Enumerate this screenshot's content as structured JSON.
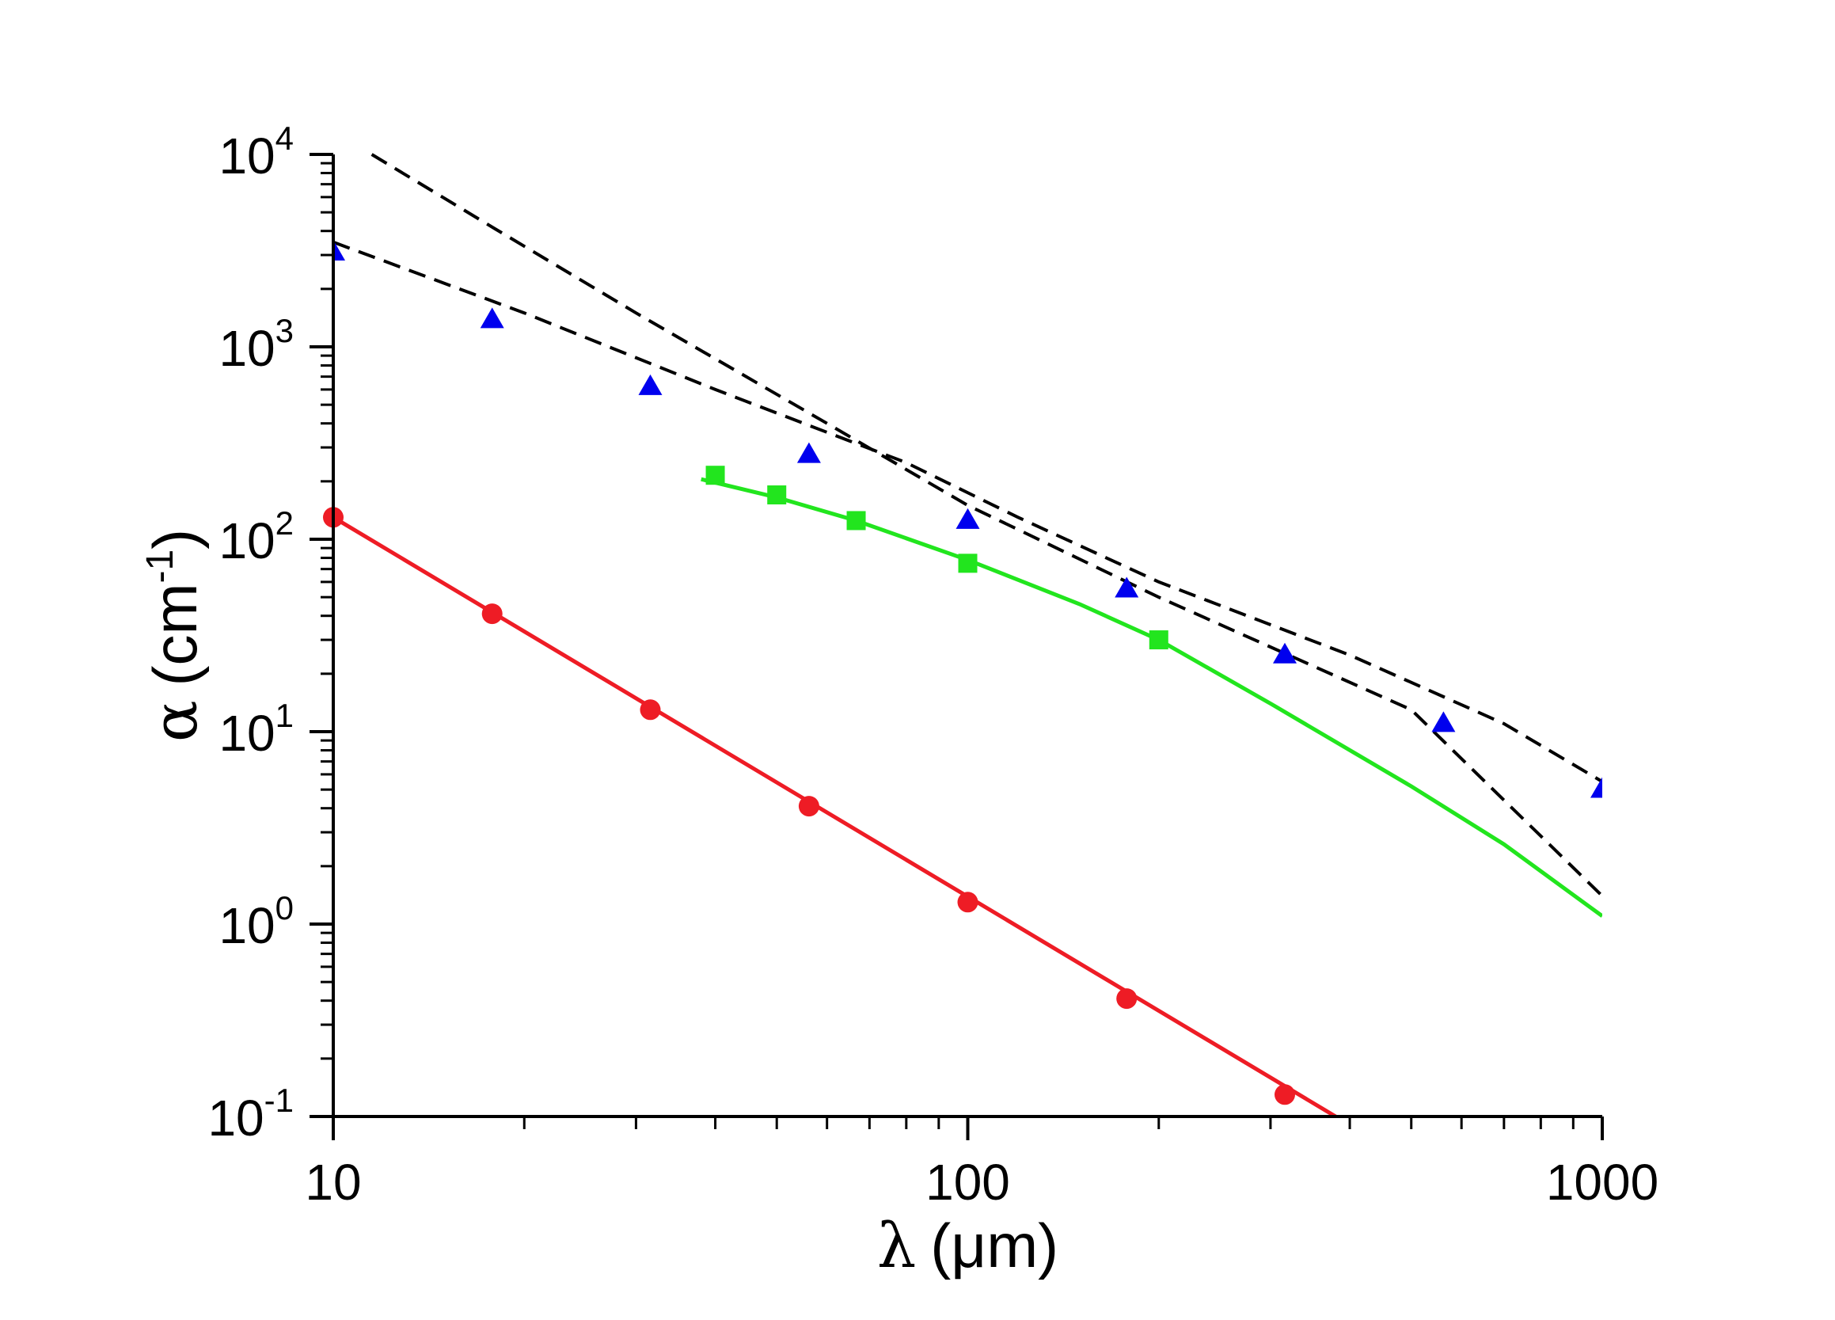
{
  "chart_data": {
    "type": "scatter",
    "title": "",
    "xlabel": {
      "symbol": "λ",
      "unit": "(μm)"
    },
    "ylabel": {
      "symbol": "α",
      "unit_open": "(cm",
      "unit_exp": "-1",
      "unit_close": ")"
    },
    "x_scale": "log",
    "y_scale": "log",
    "xlim": [
      10,
      1000
    ],
    "ylim": [
      0.1,
      10000
    ],
    "x_ticks": [
      {
        "value": 10,
        "label": "10"
      },
      {
        "value": 100,
        "label": "100"
      },
      {
        "value": 1000,
        "label": "1000"
      }
    ],
    "y_ticks": [
      {
        "value": 0.1,
        "base": "10",
        "exp": "-1"
      },
      {
        "value": 1,
        "base": "10",
        "exp": "0"
      },
      {
        "value": 10,
        "base": "10",
        "exp": "1"
      },
      {
        "value": 100,
        "base": "10",
        "exp": "2"
      },
      {
        "value": 1000,
        "base": "10",
        "exp": "3"
      },
      {
        "value": 10000,
        "base": "10",
        "exp": "4"
      }
    ],
    "grid": false,
    "series": [
      {
        "name": "red-circles",
        "color": "#ee1c25",
        "marker": "circle",
        "line": "solid",
        "points": [
          [
            10,
            130
          ],
          [
            17.8,
            41
          ],
          [
            31.6,
            13
          ],
          [
            56.2,
            4.1
          ],
          [
            100,
            1.3
          ],
          [
            178,
            0.41
          ],
          [
            316,
            0.13
          ]
        ],
        "fit": [
          [
            10,
            130
          ],
          [
            380,
            0.1
          ]
        ]
      },
      {
        "name": "green-squares",
        "color": "#22e51e",
        "marker": "square",
        "line": "solid",
        "points": [
          [
            40,
            215
          ],
          [
            50,
            170
          ],
          [
            66.7,
            125
          ],
          [
            100,
            75
          ],
          [
            200,
            30
          ]
        ],
        "fit": [
          [
            38,
            205
          ],
          [
            50,
            165
          ],
          [
            66.7,
            125
          ],
          [
            100,
            78
          ],
          [
            150,
            46
          ],
          [
            200,
            30
          ],
          [
            300,
            14
          ],
          [
            500,
            5.2
          ],
          [
            700,
            2.6
          ],
          [
            1000,
            1.1
          ]
        ]
      },
      {
        "name": "blue-triangles",
        "color": "#0000ee",
        "marker": "triangle",
        "line": "none",
        "points": [
          [
            10,
            3100
          ],
          [
            17.8,
            1380
          ],
          [
            31.6,
            620
          ],
          [
            56.2,
            275
          ],
          [
            100,
            125
          ],
          [
            178,
            55
          ],
          [
            316,
            25
          ],
          [
            562,
            11
          ],
          [
            1000,
            5
          ]
        ]
      },
      {
        "name": "dashed-upper",
        "color": "#000000",
        "marker": "none",
        "line": "dashed",
        "points": [
          [
            11.5,
            10000
          ],
          [
            18,
            4100
          ],
          [
            30,
            1500
          ],
          [
            60,
            400
          ],
          [
            100,
            150
          ],
          [
            200,
            50
          ],
          [
            500,
            13
          ],
          [
            1000,
            1.4
          ]
        ]
      },
      {
        "name": "dashed-lower",
        "color": "#000000",
        "marker": "none",
        "line": "dashed",
        "points": [
          [
            10,
            3500
          ],
          [
            20,
            1500
          ],
          [
            40,
            600
          ],
          [
            80,
            250
          ],
          [
            120,
            130
          ],
          [
            200,
            60
          ],
          [
            400,
            25
          ],
          [
            700,
            11
          ],
          [
            1000,
            5.5
          ]
        ]
      }
    ]
  }
}
